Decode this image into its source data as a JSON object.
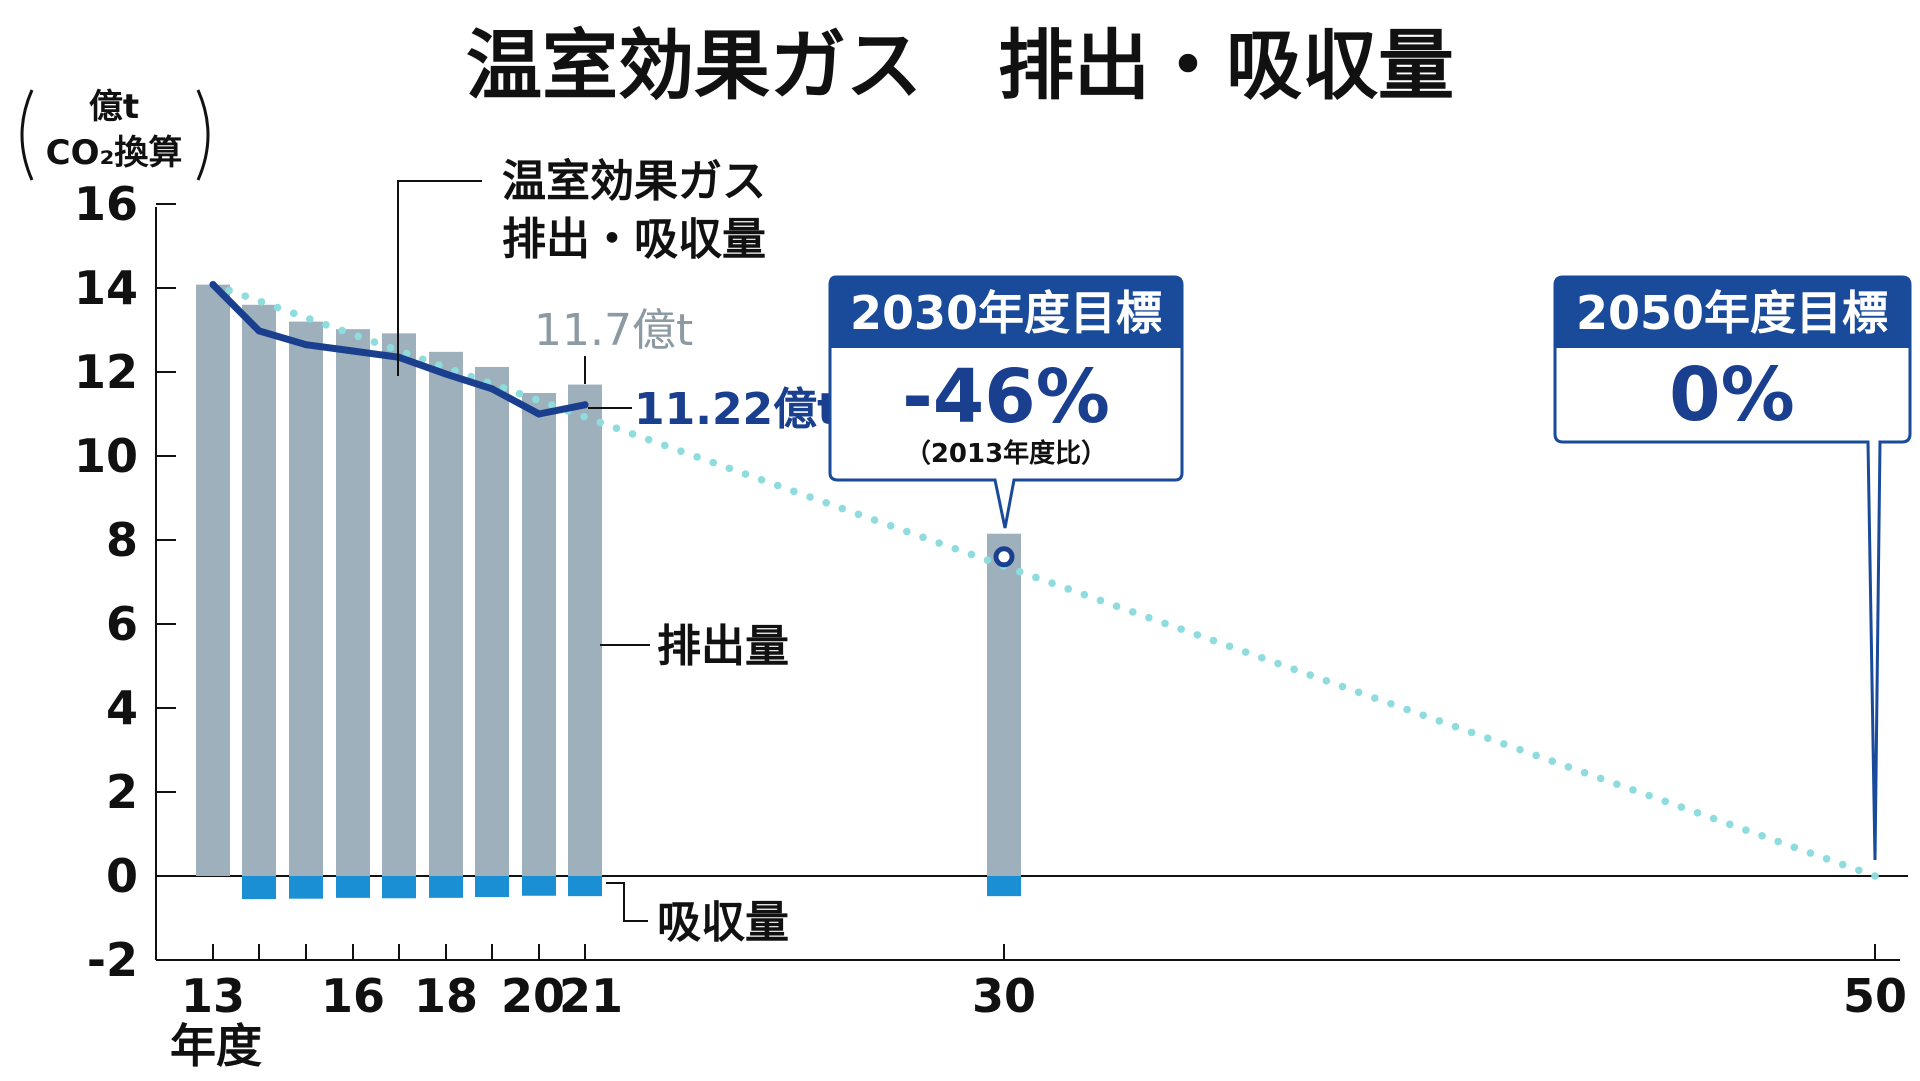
{
  "colors": {
    "emission_bar": "#9eb0bb",
    "absorption_bar": "#1a8fd3",
    "net_line": "#1a3f8f",
    "target_dots": "#8fdcdf",
    "box_header": "#1a4a9a",
    "box_border": "#1a4a9a"
  },
  "chart_data": {
    "type": "bar",
    "title": "温室効果ガス　排出・吸収量",
    "ylabel_line1": "億t",
    "ylabel_line2": "CO₂換算",
    "xlabel": "年度",
    "ylim": [
      -2,
      16
    ],
    "yticks": [
      "16",
      "14",
      "12",
      "10",
      "8",
      "6",
      "4",
      "2",
      "0",
      "-2"
    ],
    "ytick_values": [
      16,
      14,
      12,
      10,
      8,
      6,
      4,
      2,
      0,
      -2
    ],
    "x_tick_labels": [
      {
        "year": 2013,
        "label": "13"
      },
      {
        "year": 2016,
        "label": "16"
      },
      {
        "year": 2018,
        "label": "18"
      },
      {
        "year": 2020,
        "label": "20"
      },
      {
        "year": 2021,
        "label": "21"
      },
      {
        "year": 2030,
        "label": "30"
      },
      {
        "year": 2050,
        "label": "50"
      }
    ],
    "x_minor_ticks": [
      2013,
      2014,
      2015,
      2016,
      2017,
      2018,
      2019,
      2020,
      2021,
      2030,
      2050
    ],
    "series": [
      {
        "name": "排出量",
        "years": [
          2013,
          2014,
          2015,
          2016,
          2017,
          2018,
          2019,
          2020,
          2021,
          2030
        ],
        "values": [
          14.08,
          13.6,
          13.2,
          13.02,
          12.92,
          12.48,
          12.12,
          11.5,
          11.7,
          8.15
        ]
      },
      {
        "name": "吸収量",
        "years": [
          2014,
          2015,
          2016,
          2017,
          2018,
          2019,
          2020,
          2021,
          2030
        ],
        "values": [
          -0.55,
          -0.54,
          -0.52,
          -0.53,
          -0.52,
          -0.5,
          -0.47,
          -0.48,
          -0.48
        ]
      },
      {
        "name": "温室効果ガス排出・吸収量",
        "years": [
          2013,
          2014,
          2015,
          2016,
          2017,
          2018,
          2019,
          2020,
          2021
        ],
        "values": [
          14.08,
          12.98,
          12.65,
          12.5,
          12.35,
          11.95,
          11.6,
          11.0,
          11.22
        ]
      },
      {
        "name": "target_path",
        "years": [
          2013,
          2050
        ],
        "values": [
          14.08,
          0
        ]
      }
    ],
    "target_2030_point": {
      "year": 2030,
      "value": 7.6
    },
    "labels": {
      "net_label_line1": "温室効果ガス",
      "net_label_line2": "排出・吸収量",
      "emission_label": "排出量",
      "absorption_label": "吸収量",
      "emission_2021": "11.7億t",
      "net_2021": "11.22億t"
    },
    "targets": [
      {
        "year": 2030,
        "header": "2030年度目標",
        "value": "-46%",
        "note": "（2013年度比）"
      },
      {
        "year": 2050,
        "header": "2050年度目標",
        "value": "0%",
        "note": ""
      }
    ]
  }
}
